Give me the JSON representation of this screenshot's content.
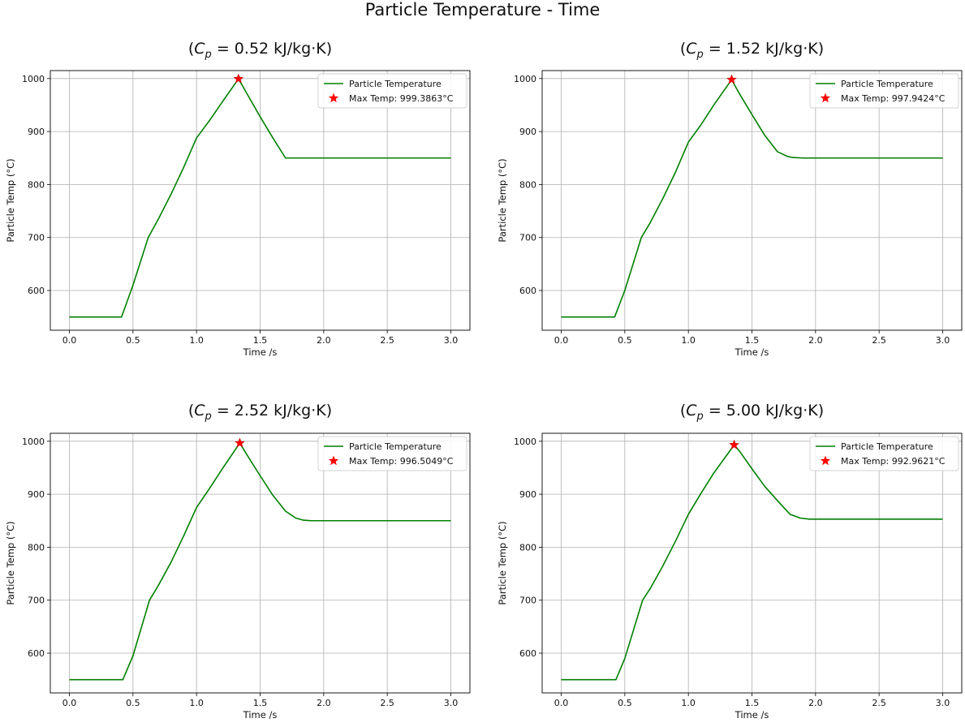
{
  "figure": {
    "title": "Particle Temperature - Time"
  },
  "colors": {
    "line": "#008000",
    "star": "#ff0000",
    "grid": "#b0b0b0",
    "axes": "#000000"
  },
  "chart_data": [
    {
      "type": "line",
      "title_prefix": "(",
      "title_var": "C",
      "title_sub": "p",
      "title_rest": " = 0.52 kJ/kg·K)",
      "xlabel": "Time /s",
      "ylabel": "Particle Temp (°C)",
      "xlim": [
        -0.15,
        3.15
      ],
      "ylim": [
        525,
        1015
      ],
      "xticks": [
        0.0,
        0.5,
        1.0,
        1.5,
        2.0,
        2.5,
        3.0
      ],
      "xtick_labels": [
        "0.0",
        "0.5",
        "1.0",
        "1.5",
        "2.0",
        "2.5",
        "3.0"
      ],
      "yticks": [
        600,
        700,
        800,
        900,
        1000
      ],
      "ytick_labels": [
        "600",
        "700",
        "800",
        "900",
        "1000"
      ],
      "grid": true,
      "legend_position": "top-right",
      "series": [
        {
          "name": "Particle Temperature",
          "x": [
            0.0,
            0.41,
            0.5,
            0.62,
            0.7,
            0.8,
            0.9,
            1.0,
            1.1,
            1.2,
            1.33,
            1.4,
            1.5,
            1.6,
            1.7,
            1.79,
            2.0,
            2.5,
            3.0
          ],
          "y": [
            550,
            550,
            610,
            700,
            735,
            782,
            833,
            888,
            920,
            955,
            999.4,
            970,
            928,
            888,
            850,
            850,
            850,
            850,
            850
          ]
        }
      ],
      "max_point": {
        "name": "Max Temp: 999.3863°C",
        "x": 1.33,
        "y": 999.3863
      }
    },
    {
      "type": "line",
      "title_prefix": "(",
      "title_var": "C",
      "title_sub": "p",
      "title_rest": " = 1.52 kJ/kg·K)",
      "xlabel": "Time /s",
      "ylabel": "Particle Temp (°C)",
      "xlim": [
        -0.15,
        3.15
      ],
      "ylim": [
        525,
        1015
      ],
      "xticks": [
        0.0,
        0.5,
        1.0,
        1.5,
        2.0,
        2.5,
        3.0
      ],
      "xtick_labels": [
        "0.0",
        "0.5",
        "1.0",
        "1.5",
        "2.0",
        "2.5",
        "3.0"
      ],
      "yticks": [
        600,
        700,
        800,
        900,
        1000
      ],
      "ytick_labels": [
        "600",
        "700",
        "800",
        "900",
        "1000"
      ],
      "grid": true,
      "legend_position": "top-right",
      "series": [
        {
          "name": "Particle Temperature",
          "x": [
            0.0,
            0.42,
            0.5,
            0.63,
            0.7,
            0.8,
            0.9,
            1.0,
            1.1,
            1.2,
            1.34,
            1.4,
            1.5,
            1.6,
            1.7,
            1.78,
            1.82,
            1.9,
            2.0,
            2.5,
            3.0
          ],
          "y": [
            550,
            550,
            600,
            700,
            728,
            774,
            824,
            880,
            913,
            950,
            997.9,
            972,
            932,
            893,
            862,
            853,
            851,
            850,
            850,
            850,
            850
          ]
        }
      ],
      "max_point": {
        "name": "Max Temp: 997.9424°C",
        "x": 1.34,
        "y": 997.9424
      }
    },
    {
      "type": "line",
      "title_prefix": "(",
      "title_var": "C",
      "title_sub": "p",
      "title_rest": " = 2.52 kJ/kg·K)",
      "xlabel": "Time /s",
      "ylabel": "Particle Temp (°C)",
      "xlim": [
        -0.15,
        3.15
      ],
      "ylim": [
        525,
        1015
      ],
      "xticks": [
        0.0,
        0.5,
        1.0,
        1.5,
        2.0,
        2.5,
        3.0
      ],
      "xtick_labels": [
        "0.0",
        "0.5",
        "1.0",
        "1.5",
        "2.0",
        "2.5",
        "3.0"
      ],
      "yticks": [
        600,
        700,
        800,
        900,
        1000
      ],
      "ytick_labels": [
        "600",
        "700",
        "800",
        "900",
        "1000"
      ],
      "grid": true,
      "legend_position": "top-right",
      "series": [
        {
          "name": "Particle Temperature",
          "x": [
            0.0,
            0.42,
            0.5,
            0.63,
            0.7,
            0.8,
            0.9,
            1.0,
            1.1,
            1.2,
            1.34,
            1.4,
            1.5,
            1.6,
            1.7,
            1.78,
            1.84,
            1.9,
            2.0,
            2.5,
            3.0
          ],
          "y": [
            550,
            550,
            595,
            700,
            728,
            772,
            822,
            875,
            910,
            947,
            996.5,
            973,
            935,
            898,
            868,
            855,
            851,
            850,
            850,
            850,
            850
          ]
        }
      ],
      "max_point": {
        "name": "Max Temp: 996.5049°C",
        "x": 1.34,
        "y": 996.5049
      }
    },
    {
      "type": "line",
      "title_prefix": "(",
      "title_var": "C",
      "title_sub": "p",
      "title_rest": " = 5.00 kJ/kg·K)",
      "xlabel": "Time /s",
      "ylabel": "Particle Temp (°C)",
      "xlim": [
        -0.15,
        3.15
      ],
      "ylim": [
        525,
        1015
      ],
      "xticks": [
        0.0,
        0.5,
        1.0,
        1.5,
        2.0,
        2.5,
        3.0
      ],
      "xtick_labels": [
        "0.0",
        "0.5",
        "1.0",
        "1.5",
        "2.0",
        "2.5",
        "3.0"
      ],
      "yticks": [
        600,
        700,
        800,
        900,
        1000
      ],
      "ytick_labels": [
        "600",
        "700",
        "800",
        "900",
        "1000"
      ],
      "grid": true,
      "legend_position": "top-right",
      "series": [
        {
          "name": "Particle Temperature",
          "x": [
            0.0,
            0.43,
            0.5,
            0.64,
            0.7,
            0.8,
            0.9,
            1.0,
            1.1,
            1.2,
            1.36,
            1.4,
            1.5,
            1.6,
            1.7,
            1.8,
            1.88,
            1.95,
            2.0,
            2.5,
            3.0
          ],
          "y": [
            550,
            550,
            590,
            700,
            722,
            765,
            812,
            862,
            902,
            940,
            993.0,
            982,
            948,
            915,
            888,
            862,
            855,
            853,
            853,
            853,
            853
          ]
        }
      ],
      "max_point": {
        "name": "Max Temp: 992.9621°C",
        "x": 1.36,
        "y": 992.9621
      }
    }
  ]
}
